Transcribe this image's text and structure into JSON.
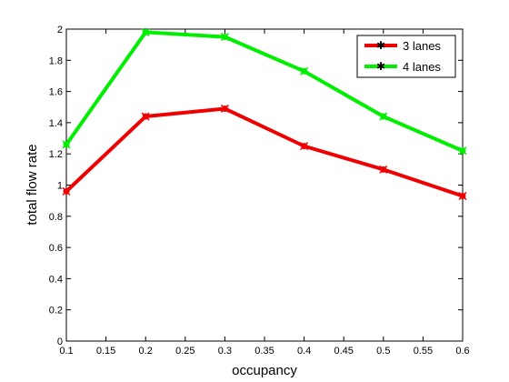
{
  "chart_data": {
    "type": "line",
    "title": "",
    "xlabel": "occupancy",
    "ylabel": "total flow rate",
    "xlim": [
      0.1,
      0.6
    ],
    "ylim": [
      0,
      2
    ],
    "xticks": [
      0.1,
      0.15,
      0.2,
      0.25,
      0.3,
      0.35,
      0.4,
      0.45,
      0.5,
      0.55,
      0.6
    ],
    "xtick_labels": [
      "0.1",
      "0.15",
      "0.2",
      "0.25",
      "0.3",
      "0.35",
      "0.4",
      "0.45",
      "0.5",
      "0.55",
      "0.6"
    ],
    "yticks": [
      0,
      0.2,
      0.4,
      0.6,
      0.8,
      1,
      1.2,
      1.4,
      1.6,
      1.8,
      2
    ],
    "ytick_labels": [
      "0",
      "0.2",
      "0.4",
      "0.6",
      "0.8",
      "1",
      "1.2",
      "1.4",
      "1.6",
      "1.8",
      "2"
    ],
    "grid": false,
    "legend_position": "top-right",
    "x": [
      0.1,
      0.2,
      0.3,
      0.4,
      0.5,
      0.6
    ],
    "series": [
      {
        "name": "3 lanes",
        "color": "#ee0000",
        "values": [
          0.96,
          1.44,
          1.49,
          1.25,
          1.1,
          0.93
        ]
      },
      {
        "name": "4 lanes",
        "color": "#00ee00",
        "values": [
          1.26,
          1.98,
          1.95,
          1.73,
          1.44,
          1.22
        ]
      }
    ]
  }
}
